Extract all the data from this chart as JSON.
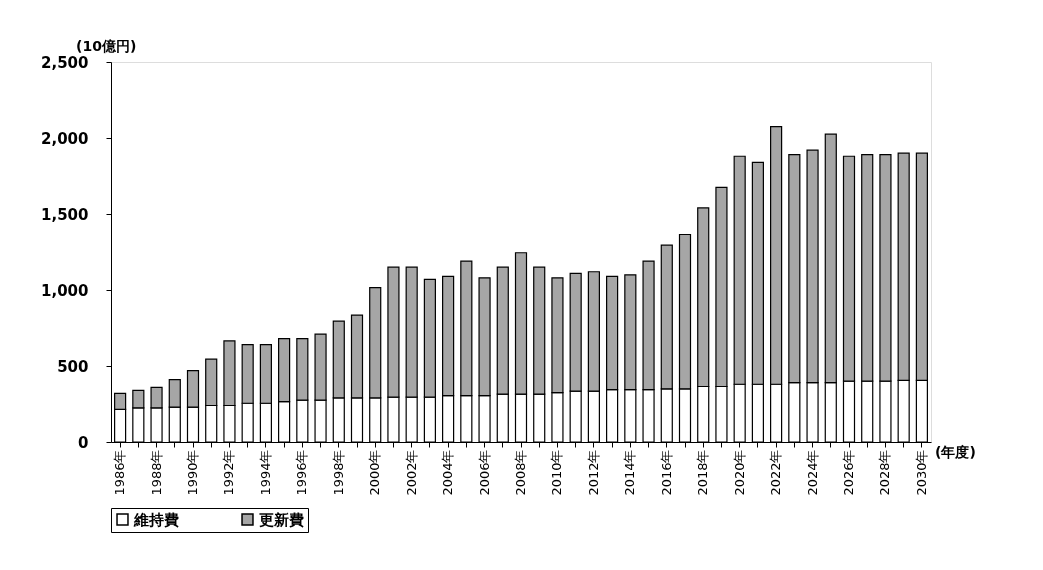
{
  "chart_data": {
    "type": "bar",
    "stacked": true,
    "ylabel": "(10億円)",
    "xlabel": "(年度)",
    "categories": [
      "1986年",
      null,
      "1988年",
      null,
      "1990年",
      null,
      "1992年",
      null,
      "1994年",
      null,
      "1996年",
      null,
      "1998年",
      null,
      "2000年",
      null,
      "2002年",
      null,
      "2004年",
      null,
      "2006年",
      null,
      "2008年",
      null,
      "2010年",
      null,
      "2012年",
      null,
      "2014年",
      null,
      "2016年",
      null,
      "2018年",
      null,
      "2020年",
      null,
      "2022年",
      null,
      "2024年",
      null,
      "2026年",
      null,
      "2028年",
      null,
      "2030年"
    ],
    "series": [
      {
        "name": "維持費",
        "color": "#ffffff",
        "values": [
          215,
          225,
          225,
          230,
          230,
          240,
          240,
          255,
          255,
          265,
          275,
          275,
          290,
          290,
          290,
          295,
          295,
          295,
          305,
          305,
          305,
          315,
          315,
          315,
          325,
          335,
          335,
          345,
          345,
          345,
          350,
          350,
          365,
          365,
          380,
          380,
          380,
          390,
          390,
          390,
          400,
          400,
          400,
          405,
          405
        ]
      },
      {
        "name": "更新費",
        "color": "#a6a6a6",
        "values": [
          105,
          115,
          135,
          180,
          240,
          305,
          425,
          385,
          385,
          415,
          405,
          435,
          505,
          545,
          725,
          855,
          855,
          775,
          785,
          885,
          775,
          835,
          930,
          835,
          755,
          775,
          785,
          745,
          755,
          845,
          945,
          1015,
          1175,
          1310,
          1500,
          1460,
          1695,
          1500,
          1530,
          1635,
          1480,
          1490,
          1490,
          1495,
          1495
        ]
      }
    ],
    "ylim": [
      0,
      2500
    ],
    "yticks": [
      0,
      500,
      {
        "value": 1000,
        "label": "1,000"
      },
      {
        "value": 1500,
        "label": "1,500"
      },
      {
        "value": 2000,
        "label": "2,000"
      },
      {
        "value": 2500,
        "label": "2,500"
      }
    ],
    "grid": false,
    "legend": "bottom"
  }
}
